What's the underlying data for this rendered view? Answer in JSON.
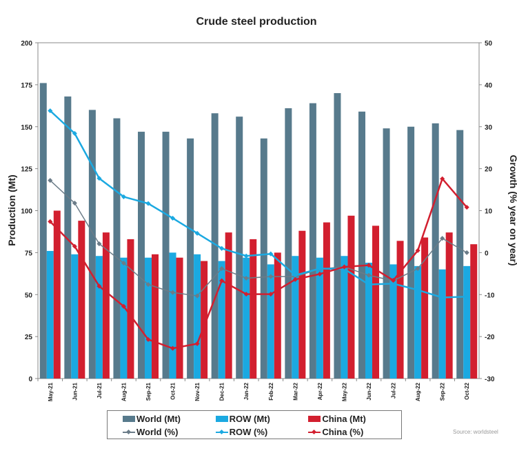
{
  "chart_data": {
    "type": "bar",
    "title": "Crude steel production",
    "ylabel": "Production (Mt)",
    "y2label": "Growth (% year on year)",
    "ylim": [
      0,
      200
    ],
    "y2lim": [
      -30,
      50
    ],
    "yticks": [
      0,
      25,
      50,
      75,
      100,
      125,
      150,
      175,
      200
    ],
    "y2ticks": [
      -30,
      -20,
      -10,
      0,
      10,
      20,
      30,
      40,
      50
    ],
    "categories": [
      "May-21",
      "Jun-21",
      "Jul-21",
      "Aug-21",
      "Sep-21",
      "Oct-21",
      "Nov-21",
      "Dec-21",
      "Jan-22",
      "Feb-22",
      "Mar-22",
      "Apr-22",
      "May-22",
      "Jun-22",
      "Jul-22",
      "Aug-22",
      "Sep-22",
      "Oct-22"
    ],
    "series": [
      {
        "name": "World (Mt)",
        "type": "bar",
        "axis": "left",
        "color": "#577a8c",
        "values": [
          176,
          168,
          160,
          155,
          147,
          147,
          143,
          158,
          156,
          143,
          161,
          164,
          170,
          159,
          149,
          150,
          152,
          148
        ]
      },
      {
        "name": "ROW (Mt)",
        "type": "bar",
        "axis": "left",
        "color": "#1ba9e1",
        "values": [
          76,
          74,
          73,
          72,
          72,
          75,
          74,
          70,
          72,
          68,
          73,
          72,
          73,
          69,
          68,
          67,
          65,
          67
        ]
      },
      {
        "name": "China (Mt)",
        "type": "bar",
        "axis": "left",
        "color": "#d21f2f",
        "values": [
          100,
          94,
          87,
          83,
          74,
          72,
          70,
          87,
          83,
          75,
          88,
          93,
          97,
          91,
          82,
          84,
          87,
          80
        ]
      },
      {
        "name": "World (%)",
        "type": "line",
        "axis": "right",
        "color": "#6b7c88",
        "values": [
          17.2,
          11.8,
          2.1,
          -2.5,
          -7.6,
          -9.5,
          -10.3,
          -3.8,
          -6.1,
          -5.7,
          -5.7,
          -3.9,
          -3.4,
          -5.4,
          -6.7,
          -3.8,
          3.4,
          0
        ]
      },
      {
        "name": "ROW (%)",
        "type": "line",
        "axis": "right",
        "color": "#1ba9e1",
        "values": [
          33.8,
          28.4,
          17.7,
          13.3,
          11.7,
          8.2,
          4.6,
          1.0,
          -0.8,
          -0.3,
          -5.4,
          -3.8,
          -3.9,
          -7.6,
          -7.4,
          -8.9,
          -10.7,
          -10.5
        ]
      },
      {
        "name": "China (%)",
        "type": "line",
        "axis": "right",
        "color": "#d21f2f",
        "values": [
          7.4,
          1.5,
          -8.0,
          -12.8,
          -20.7,
          -22.8,
          -21.7,
          -6.7,
          -9.9,
          -9.9,
          -6.4,
          -5.1,
          -3.4,
          -3.0,
          -6.6,
          0.5,
          17.6,
          10.8
        ]
      }
    ],
    "grid": false,
    "legend_position": "bottom",
    "source": "Source: worldsteel"
  }
}
